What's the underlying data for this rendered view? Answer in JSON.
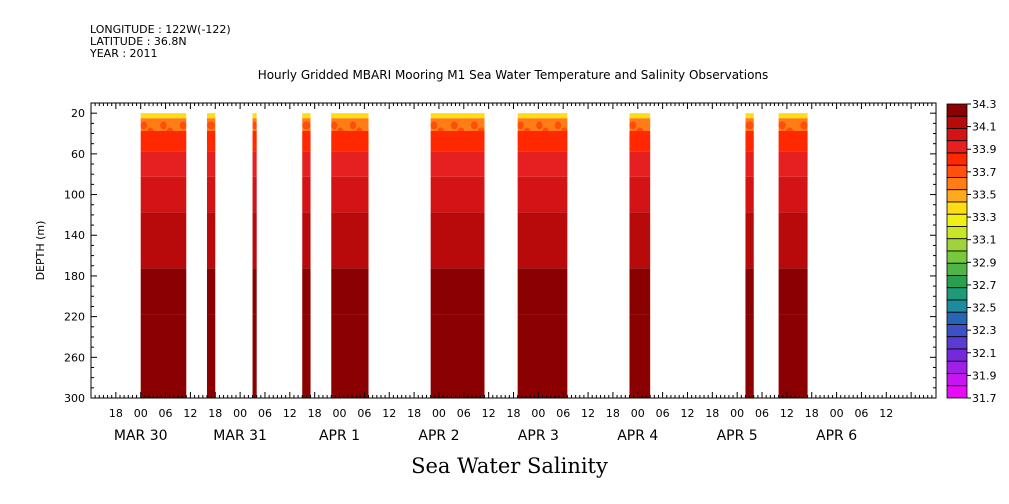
{
  "header": {
    "longitude": "LONGITUDE : 122W(-122)",
    "latitude": "LATITUDE : 36.8N",
    "year": "YEAR : 2011"
  },
  "chart_data": {
    "type": "heatmap",
    "title": "Hourly Gridded MBARI Mooring M1 Sea Water Temperature and Salinity Observations",
    "bottom_title": "Sea Water Salinity",
    "ylabel": "DEPTH (m)",
    "y_inverted": true,
    "ylim": [
      0,
      300
    ],
    "y_ticks": [
      20,
      60,
      100,
      140,
      180,
      220,
      260,
      300
    ],
    "x_unit": "hours since 2011-03-29 18:00",
    "xlim": [
      -6,
      198
    ],
    "x_hour_ticks": [
      {
        "x": 0,
        "label": "18"
      },
      {
        "x": 6,
        "label": "00"
      },
      {
        "x": 12,
        "label": "06"
      },
      {
        "x": 18,
        "label": "12"
      },
      {
        "x": 24,
        "label": "18"
      },
      {
        "x": 30,
        "label": "00"
      },
      {
        "x": 36,
        "label": "06"
      },
      {
        "x": 42,
        "label": "12"
      },
      {
        "x": 48,
        "label": "18"
      },
      {
        "x": 54,
        "label": "00"
      },
      {
        "x": 60,
        "label": "06"
      },
      {
        "x": 66,
        "label": "12"
      },
      {
        "x": 72,
        "label": "18"
      },
      {
        "x": 78,
        "label": "00"
      },
      {
        "x": 84,
        "label": "06"
      },
      {
        "x": 90,
        "label": "12"
      },
      {
        "x": 96,
        "label": "18"
      },
      {
        "x": 102,
        "label": "00"
      },
      {
        "x": 108,
        "label": "06"
      },
      {
        "x": 114,
        "label": "12"
      },
      {
        "x": 120,
        "label": "18"
      },
      {
        "x": 126,
        "label": "00"
      },
      {
        "x": 132,
        "label": "06"
      },
      {
        "x": 138,
        "label": "12"
      },
      {
        "x": 144,
        "label": "18"
      },
      {
        "x": 150,
        "label": "00"
      },
      {
        "x": 156,
        "label": "06"
      },
      {
        "x": 162,
        "label": "12"
      },
      {
        "x": 168,
        "label": "18"
      },
      {
        "x": 174,
        "label": "00"
      },
      {
        "x": 180,
        "label": "06"
      },
      {
        "x": 186,
        "label": "12"
      }
    ],
    "x_day_labels": [
      {
        "x": 6,
        "label": "MAR 30"
      },
      {
        "x": 30,
        "label": "MAR 31"
      },
      {
        "x": 54,
        "label": "APR  1"
      },
      {
        "x": 78,
        "label": "APR  2"
      },
      {
        "x": 102,
        "label": "APR  3"
      },
      {
        "x": 126,
        "label": "APR  4"
      },
      {
        "x": 150,
        "label": "APR  5"
      },
      {
        "x": 174,
        "label": "APR  6"
      }
    ],
    "colorbar": {
      "labels": [
        "34.3",
        "34.1",
        "33.9",
        "33.7",
        "33.5",
        "33.3",
        "33.1",
        "32.9",
        "32.7",
        "32.5",
        "32.3",
        "32.1",
        "31.9",
        "31.7"
      ],
      "colors": [
        "#8b0000",
        "#b80a0a",
        "#d41414",
        "#e62020",
        "#ff2800",
        "#ff5010",
        "#ff7d14",
        "#ffaa1e",
        "#ffdc14",
        "#f0f014",
        "#c8e628",
        "#a0d23c",
        "#78c83c",
        "#50b446",
        "#28a050",
        "#1e9a78",
        "#1e8ca0",
        "#2864b4",
        "#3c50c8",
        "#5a3cd2",
        "#7828dc",
        "#a01ee6",
        "#c814f0",
        "#e60af5"
      ]
    },
    "data_blocks": [
      {
        "x0": 6,
        "x1": 17
      },
      {
        "x0": 22,
        "x1": 24
      },
      {
        "x0": 33,
        "x1": 34
      },
      {
        "x0": 45,
        "x1": 47
      },
      {
        "x0": 52,
        "x1": 61
      },
      {
        "x0": 76,
        "x1": 89
      },
      {
        "x0": 97,
        "x1": 109
      },
      {
        "x0": 124,
        "x1": 129
      },
      {
        "x0": 152,
        "x1": 154
      },
      {
        "x0": 160,
        "x1": 167
      }
    ],
    "depth_salinity_profile": [
      {
        "depth": 20,
        "value": 33.4
      },
      {
        "depth": 30,
        "value": 33.6
      },
      {
        "depth": 45,
        "value": 33.8
      },
      {
        "depth": 70,
        "value": 33.9
      },
      {
        "depth": 95,
        "value": 34.0
      },
      {
        "depth": 140,
        "value": 34.1
      },
      {
        "depth": 205,
        "value": 34.2
      },
      {
        "depth": 230,
        "value": 34.3
      }
    ]
  }
}
